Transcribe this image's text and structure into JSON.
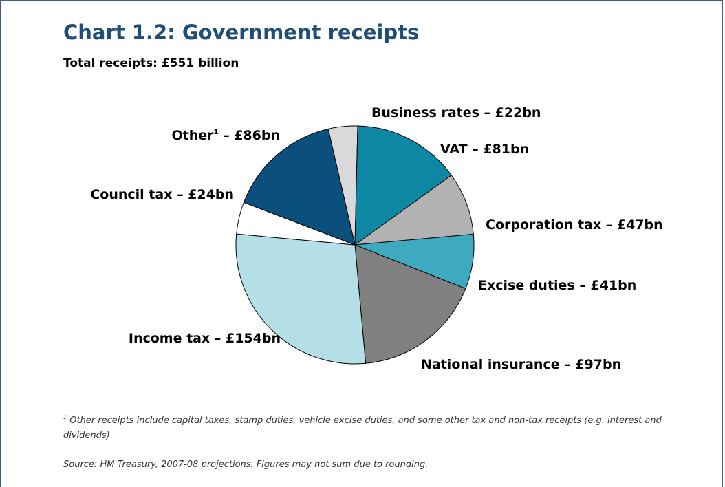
{
  "header": {
    "title": "Chart 1.2: Government receipts",
    "subtitle": "Total receipts: £551 billion"
  },
  "chart_data": {
    "type": "pie",
    "title": "Chart 1.2: Government receipts",
    "subtitle": "Total receipts: £551 billion",
    "unit": "£bn",
    "slices": [
      {
        "name": "Business rates",
        "label": "Business rates – £22bn",
        "value": 22,
        "color": "#d9d9d9"
      },
      {
        "name": "VAT",
        "label": "VAT – £81bn",
        "value": 81,
        "color": "#0e87a4"
      },
      {
        "name": "Corporation tax",
        "label": "Corporation tax – £47bn",
        "value": 47,
        "color": "#b2b2b2"
      },
      {
        "name": "Excise duties",
        "label": "Excise duties – £41bn",
        "value": 41,
        "color": "#3eaac2"
      },
      {
        "name": "National insurance",
        "label": "National insurance – £97bn",
        "value": 97,
        "color": "#808080"
      },
      {
        "name": "Income tax",
        "label": "Income tax – £154bn",
        "value": 154,
        "color": "#b5dfe6"
      },
      {
        "name": "Council tax",
        "label": "Council tax – £24bn",
        "value": 24,
        "color": "#ffffff"
      },
      {
        "name": "Other",
        "label": "Other",
        "label_suffix": " – £86bn",
        "footnote_marker": "1",
        "value": 86,
        "color": "#0b4f7c"
      }
    ]
  },
  "footnote": {
    "marker": "1",
    "text": "Other receipts include capital taxes, stamp duties, vehicle excise duties, and some other tax and non-tax receipts (e.g. interest and dividends)"
  },
  "source": {
    "text": "Source: HM Treasury, 2007-08 projections. Figures may not sum due to rounding."
  }
}
